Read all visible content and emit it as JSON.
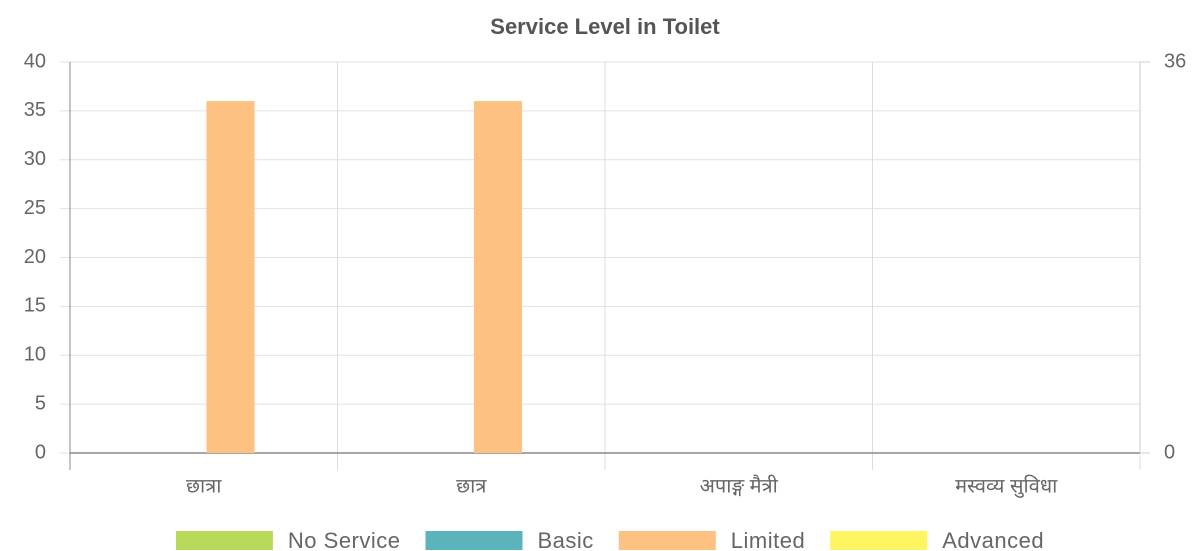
{
  "chart_data": {
    "type": "bar",
    "title": "Service Level in Toilet",
    "categories": [
      "छात्रा",
      "छात्र",
      "अपाङ्ग मैत्री",
      "मस्वव्य सुविधा"
    ],
    "series": [
      {
        "name": "No Service",
        "color": "#b9d95b",
        "values": [
          0,
          0,
          0,
          0
        ]
      },
      {
        "name": "Basic",
        "color": "#5bb4bb",
        "values": [
          0,
          0,
          0,
          0
        ]
      },
      {
        "name": "Limited",
        "color": "#fdc282",
        "values": [
          36,
          36,
          0,
          0
        ]
      },
      {
        "name": "Advanced",
        "color": "#fef560",
        "values": [
          0,
          0,
          0,
          0
        ]
      }
    ],
    "ylim": [
      0,
      40
    ],
    "yticks": [
      0,
      5,
      10,
      15,
      20,
      25,
      30,
      35,
      40
    ],
    "y2lim": [
      0,
      36
    ],
    "y2ticks": [
      0,
      36
    ],
    "grid": true,
    "legend": "bottom"
  }
}
